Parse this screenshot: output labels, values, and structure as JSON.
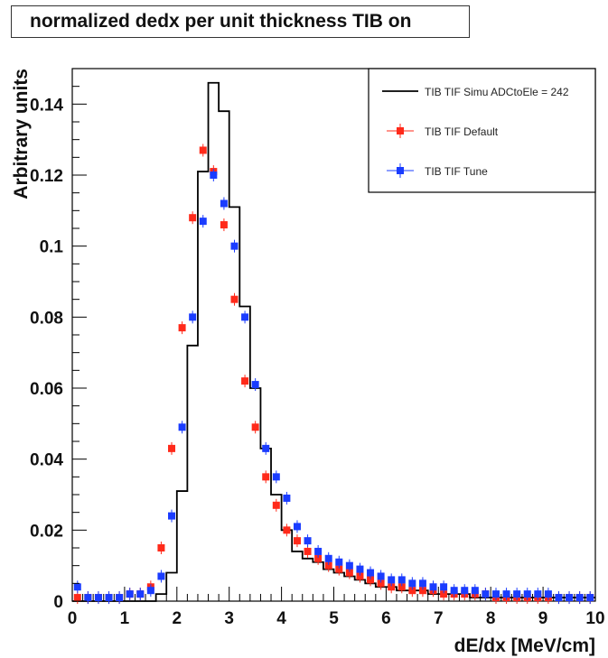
{
  "chart_data": {
    "type": "scatter",
    "title": "normalized dedx per unit thickness TIB on",
    "xlabel": "dE/dx [MeV/cm]",
    "ylabel": "Arbitrary units",
    "xlim": [
      0,
      10
    ],
    "ylim": [
      0,
      0.15
    ],
    "x_ticks": [
      "0",
      "1",
      "2",
      "3",
      "4",
      "5",
      "6",
      "7",
      "8",
      "9",
      "10"
    ],
    "y_ticks": [
      "0",
      "0.02",
      "0.04",
      "0.06",
      "0.08",
      "0.1",
      "0.12",
      "0.14"
    ],
    "grid": false,
    "legend_position": "top-right",
    "colors": {
      "simu": "#000000",
      "default": "#ff2a1a",
      "tune": "#1a3cff"
    },
    "series": [
      {
        "name": "TIB TIF Simu ADCtoEle = 242",
        "kind": "histogram",
        "bin_edges": [
          0,
          0.2,
          0.4,
          0.6,
          0.8,
          1.0,
          1.2,
          1.4,
          1.6,
          1.8,
          2.0,
          2.2,
          2.4,
          2.6,
          2.8,
          3.0,
          3.2,
          3.4,
          3.6,
          3.8,
          4.0,
          4.2,
          4.4,
          4.6,
          4.8,
          5.0,
          5.2,
          5.4,
          5.6,
          5.8,
          6.0,
          6.2,
          6.4,
          6.6,
          6.8,
          7.0,
          7.2,
          7.4,
          7.6,
          7.8,
          8.0,
          8.2,
          8.4,
          8.6,
          8.8,
          9.0,
          9.2,
          9.4,
          9.6,
          9.8,
          10.0
        ],
        "values": [
          0,
          0,
          0,
          0,
          0,
          0,
          0,
          0,
          0.002,
          0.008,
          0.031,
          0.072,
          0.121,
          0.146,
          0.138,
          0.111,
          0.083,
          0.06,
          0.043,
          0.03,
          0.02,
          0.014,
          0.012,
          0.011,
          0.009,
          0.008,
          0.007,
          0.006,
          0.005,
          0.004,
          0.004,
          0.003,
          0.003,
          0.003,
          0.002,
          0.002,
          0.002,
          0.002,
          0.001,
          0.001,
          0.001,
          0.001,
          0.001,
          0.001,
          0.001,
          0.001,
          0.001,
          0.001,
          0.001,
          0.001
        ]
      },
      {
        "name": "TIB TIF Default",
        "kind": "markers",
        "x": [
          0.1,
          0.3,
          0.5,
          0.7,
          0.9,
          1.1,
          1.3,
          1.5,
          1.7,
          1.9,
          2.1,
          2.3,
          2.5,
          2.7,
          2.9,
          3.1,
          3.3,
          3.5,
          3.7,
          3.9,
          4.1,
          4.3,
          4.5,
          4.7,
          4.9,
          5.1,
          5.3,
          5.5,
          5.7,
          5.9,
          6.1,
          6.3,
          6.5,
          6.7,
          6.9,
          7.1,
          7.3,
          7.5,
          7.7,
          7.9,
          8.1,
          8.3,
          8.5,
          8.7,
          8.9,
          9.1,
          9.3,
          9.5,
          9.7,
          9.9
        ],
        "y": [
          0.001,
          0.001,
          0.001,
          0.001,
          0.001,
          0.002,
          0.002,
          0.004,
          0.015,
          0.043,
          0.077,
          0.108,
          0.127,
          0.121,
          0.106,
          0.085,
          0.062,
          0.049,
          0.035,
          0.027,
          0.02,
          0.017,
          0.014,
          0.012,
          0.01,
          0.009,
          0.008,
          0.007,
          0.006,
          0.005,
          0.004,
          0.004,
          0.003,
          0.003,
          0.003,
          0.002,
          0.002,
          0.002,
          0.002,
          0.002,
          0.001,
          0.001,
          0.001,
          0.001,
          0.001,
          0.001,
          0.001,
          0.001,
          0.001,
          0.001
        ]
      },
      {
        "name": "TIB TIF Tune",
        "kind": "markers",
        "x": [
          0.1,
          0.3,
          0.5,
          0.7,
          0.9,
          1.1,
          1.3,
          1.5,
          1.7,
          1.9,
          2.1,
          2.3,
          2.5,
          2.7,
          2.9,
          3.1,
          3.3,
          3.5,
          3.7,
          3.9,
          4.1,
          4.3,
          4.5,
          4.7,
          4.9,
          5.1,
          5.3,
          5.5,
          5.7,
          5.9,
          6.1,
          6.3,
          6.5,
          6.7,
          6.9,
          7.1,
          7.3,
          7.5,
          7.7,
          7.9,
          8.1,
          8.3,
          8.5,
          8.7,
          8.9,
          9.1,
          9.3,
          9.5,
          9.7,
          9.9
        ],
        "y": [
          0.004,
          0.001,
          0.001,
          0.001,
          0.001,
          0.002,
          0.002,
          0.003,
          0.007,
          0.024,
          0.049,
          0.08,
          0.107,
          0.12,
          0.112,
          0.1,
          0.08,
          0.061,
          0.043,
          0.035,
          0.029,
          0.021,
          0.017,
          0.014,
          0.012,
          0.011,
          0.01,
          0.009,
          0.008,
          0.007,
          0.006,
          0.006,
          0.005,
          0.005,
          0.004,
          0.004,
          0.003,
          0.003,
          0.003,
          0.002,
          0.002,
          0.002,
          0.002,
          0.002,
          0.002,
          0.002,
          0.001,
          0.001,
          0.001,
          0.001
        ]
      }
    ]
  }
}
